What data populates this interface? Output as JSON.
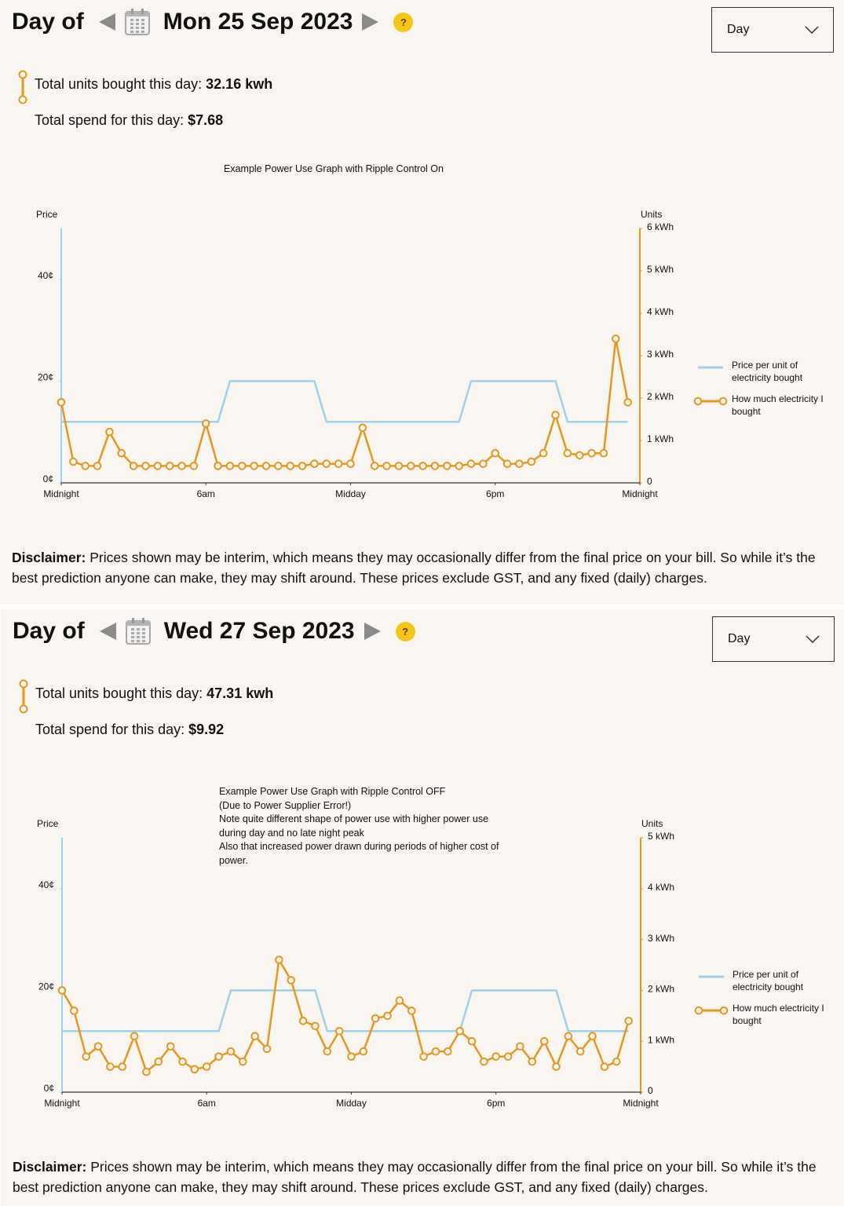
{
  "panels": [
    {
      "heading": "Day of",
      "date": "Mon 25 Sep 2023",
      "help": "?",
      "period": "Day",
      "units_label": "Total units bought this day:",
      "units_value": "32.16 kwh",
      "spend_label": "Total spend for this day:",
      "spend_value": "$7.68",
      "disclaimer_label": "Disclaimer:",
      "disclaimer_text": "Prices shown may be interim, which means they may occasionally differ from the final price on your bill. So while it’s the best prediction anyone can make, they may shift around. These prices exclude GST, and any fixed (daily) charges."
    },
    {
      "heading": "Day of",
      "date": "Wed 27 Sep 2023",
      "help": "?",
      "period": "Day",
      "units_label": "Total units bought this day:",
      "units_value": "47.31 kwh",
      "spend_label": "Total spend for this day:",
      "spend_value": "$9.92",
      "disclaimer_label": "Disclaimer:",
      "disclaimer_text": "Prices shown may be interim, which means they may occasionally differ from the final price on your bill. So while it’s the best prediction anyone can make, they may shift around. These prices exclude GST, and any fixed (daily) charges."
    }
  ],
  "chart_data": [
    {
      "type": "line",
      "title": "Example Power Use Graph with Ripple Control On",
      "ylabel": "Price",
      "y2label": "Units",
      "x": [
        0,
        0.5,
        1,
        1.5,
        2,
        2.5,
        3,
        3.5,
        4,
        4.5,
        5,
        5.5,
        6,
        6.5,
        7,
        7.5,
        8,
        8.5,
        9,
        9.5,
        10,
        10.5,
        11,
        11.5,
        12,
        12.5,
        13,
        13.5,
        14,
        14.5,
        15,
        15.5,
        16,
        16.5,
        17,
        17.5,
        18,
        18.5,
        19,
        19.5,
        20,
        20.5,
        21,
        21.5,
        22,
        22.5,
        23,
        23.5
      ],
      "xlim": [
        0,
        24
      ],
      "xticks": [
        {
          "value": 0,
          "label": "Midnight"
        },
        {
          "value": 6,
          "label": "6am"
        },
        {
          "value": 12,
          "label": "Midday"
        },
        {
          "value": 18,
          "label": "6pm"
        },
        {
          "value": 24,
          "label": "Midnight"
        }
      ],
      "ylim": [
        0,
        50
      ],
      "yticks": [
        {
          "value": 0,
          "label": "0¢"
        },
        {
          "value": 20,
          "label": "20¢"
        },
        {
          "value": 40,
          "label": "40¢"
        }
      ],
      "y2lim": [
        0,
        6
      ],
      "y2ticks": [
        {
          "value": 0,
          "label": "0"
        },
        {
          "value": 1,
          "label": "1 kWh"
        },
        {
          "value": 2,
          "label": "2 kWh"
        },
        {
          "value": 3,
          "label": "3 kWh"
        },
        {
          "value": 4,
          "label": "4 kWh"
        },
        {
          "value": 5,
          "label": "5 kWh"
        },
        {
          "value": 6,
          "label": "6 kWh"
        }
      ],
      "series": [
        {
          "name": "Price per unit of electricity bought",
          "color": "#9fd0ea",
          "markers": false,
          "values": [
            12,
            12,
            12,
            12,
            12,
            12,
            12,
            12,
            12,
            12,
            12,
            12,
            12,
            12,
            20,
            20,
            20,
            20,
            20,
            20,
            20,
            20,
            12,
            12,
            12,
            12,
            12,
            12,
            12,
            12,
            12,
            12,
            12,
            12,
            20,
            20,
            20,
            20,
            20,
            20,
            20,
            20,
            12,
            12,
            12,
            12,
            12,
            12
          ]
        },
        {
          "name": "How much electricity I bought",
          "color": "#e8961e",
          "markers": true,
          "axis": "y2",
          "values": [
            1.9,
            0.5,
            0.4,
            0.4,
            1.2,
            0.7,
            0.4,
            0.4,
            0.4,
            0.4,
            0.4,
            0.4,
            1.4,
            0.4,
            0.4,
            0.4,
            0.4,
            0.4,
            0.4,
            0.4,
            0.4,
            0.45,
            0.45,
            0.45,
            0.45,
            1.3,
            0.4,
            0.4,
            0.4,
            0.4,
            0.4,
            0.4,
            0.4,
            0.4,
            0.45,
            0.45,
            0.7,
            0.45,
            0.45,
            0.5,
            0.7,
            1.6,
            0.7,
            0.65,
            0.7,
            0.7,
            3.4,
            1.9
          ]
        }
      ]
    },
    {
      "type": "line",
      "title": "Example Power Use Graph with Ripple Control OFF",
      "annotations": [
        "(Due to Power Supplier Error!)",
        "Note quite different shape of power use with higher power use during day and no late night peak",
        "Also that increased power drawn during periods of higher cost of power."
      ],
      "ylabel": "Price",
      "y2label": "Units",
      "x": [
        0,
        0.5,
        1,
        1.5,
        2,
        2.5,
        3,
        3.5,
        4,
        4.5,
        5,
        5.5,
        6,
        6.5,
        7,
        7.5,
        8,
        8.5,
        9,
        9.5,
        10,
        10.5,
        11,
        11.5,
        12,
        12.5,
        13,
        13.5,
        14,
        14.5,
        15,
        15.5,
        16,
        16.5,
        17,
        17.5,
        18,
        18.5,
        19,
        19.5,
        20,
        20.5,
        21,
        21.5,
        22,
        22.5,
        23,
        23.5
      ],
      "xlim": [
        0,
        24
      ],
      "xticks": [
        {
          "value": 0,
          "label": "Midnight"
        },
        {
          "value": 6,
          "label": "6am"
        },
        {
          "value": 12,
          "label": "Midday"
        },
        {
          "value": 18,
          "label": "6pm"
        },
        {
          "value": 24,
          "label": "Midnight"
        }
      ],
      "ylim": [
        0,
        50
      ],
      "yticks": [
        {
          "value": 0,
          "label": "0¢"
        },
        {
          "value": 20,
          "label": "20¢"
        },
        {
          "value": 40,
          "label": "40¢"
        }
      ],
      "y2lim": [
        0,
        5
      ],
      "y2ticks": [
        {
          "value": 0,
          "label": "0"
        },
        {
          "value": 1,
          "label": "1 kWh"
        },
        {
          "value": 2,
          "label": "2 kWh"
        },
        {
          "value": 3,
          "label": "3 kWh"
        },
        {
          "value": 4,
          "label": "4 kWh"
        },
        {
          "value": 5,
          "label": "5 kWh"
        }
      ],
      "series": [
        {
          "name": "Price per unit of electricity bought",
          "color": "#9fd0ea",
          "markers": false,
          "values": [
            12,
            12,
            12,
            12,
            12,
            12,
            12,
            12,
            12,
            12,
            12,
            12,
            12,
            12,
            20,
            20,
            20,
            20,
            20,
            20,
            20,
            20,
            12,
            12,
            12,
            12,
            12,
            12,
            12,
            12,
            12,
            12,
            12,
            12,
            20,
            20,
            20,
            20,
            20,
            20,
            20,
            20,
            12,
            12,
            12,
            12,
            12,
            12
          ]
        },
        {
          "name": "How much electricity I bought",
          "color": "#e8961e",
          "markers": true,
          "axis": "y2",
          "values": [
            2.0,
            1.6,
            0.7,
            0.9,
            0.5,
            0.5,
            1.1,
            0.4,
            0.6,
            0.9,
            0.6,
            0.45,
            0.5,
            0.7,
            0.8,
            0.6,
            1.1,
            0.85,
            2.6,
            2.2,
            1.4,
            1.3,
            0.8,
            1.2,
            0.7,
            0.8,
            1.45,
            1.5,
            1.8,
            1.6,
            0.7,
            0.8,
            0.8,
            1.2,
            1.0,
            0.6,
            0.7,
            0.7,
            0.9,
            0.6,
            1.0,
            0.5,
            1.1,
            0.8,
            1.1,
            0.5,
            0.6,
            1.4
          ]
        }
      ]
    }
  ]
}
